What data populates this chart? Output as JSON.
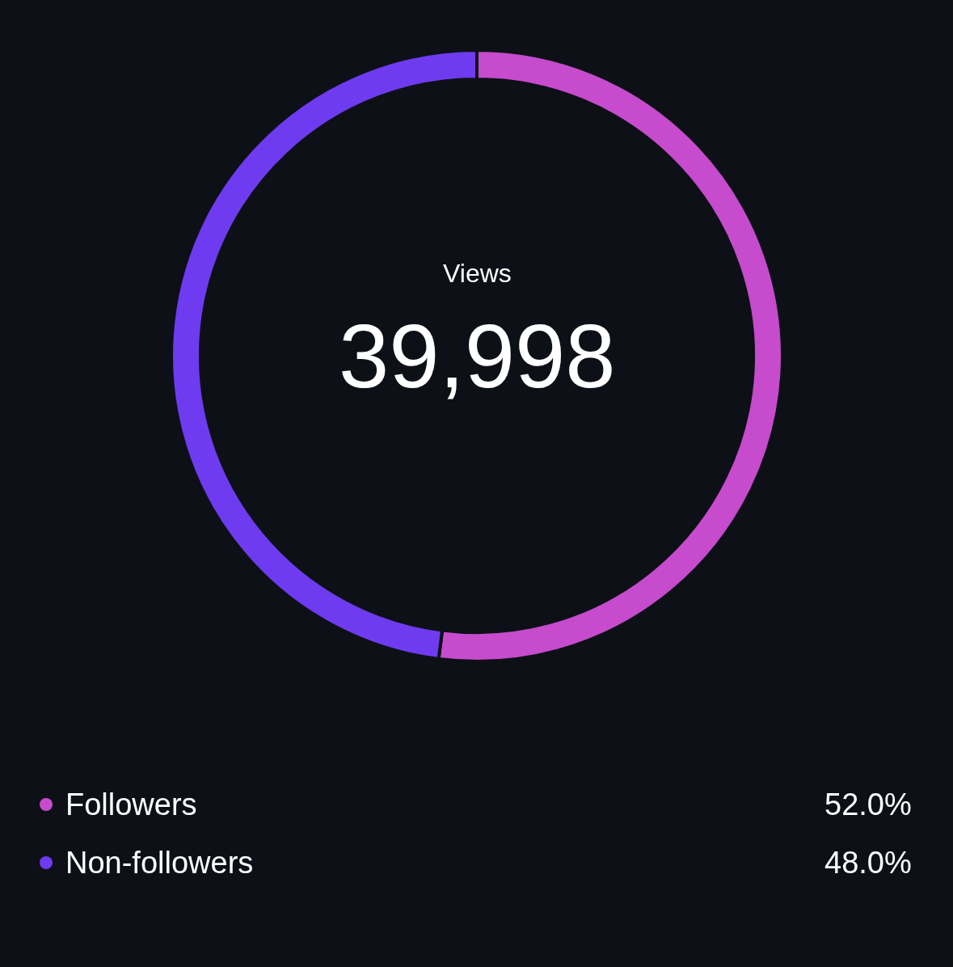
{
  "chart_data": {
    "type": "donut",
    "categories": [
      "Followers",
      "Non-followers"
    ],
    "values": [
      52.0,
      48.0
    ],
    "value_labels": [
      "52.0%",
      "48.0%"
    ],
    "colors": [
      "#c64bcd",
      "#6e3bf0"
    ],
    "annotations": [
      "Views",
      "39,998"
    ],
    "legend": "bottom"
  }
}
